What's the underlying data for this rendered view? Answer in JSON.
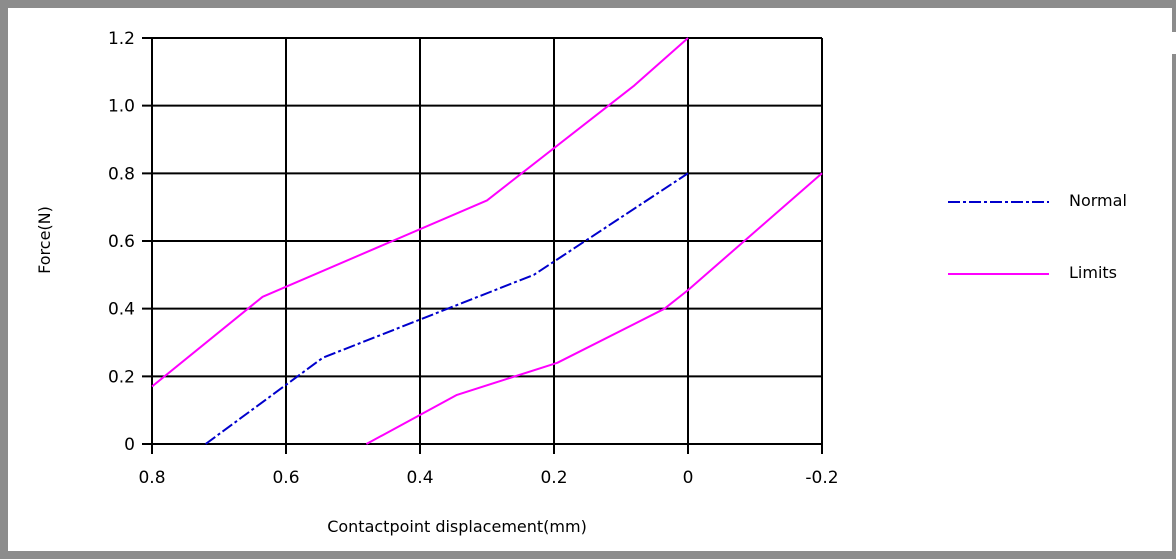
{
  "chart_data": {
    "type": "line",
    "title": "",
    "xlabel": "Contactpoint displacement(mm)",
    "ylabel": "Force(N)",
    "xlim": [
      0.8,
      -0.2
    ],
    "ylim": [
      0,
      1.2
    ],
    "x_reversed": true,
    "grid": true,
    "legend_position": "right",
    "x_ticks": [
      "0.8",
      "0.6",
      "0.4",
      "0.2",
      "0",
      "-0.2"
    ],
    "x_tick_values": [
      0.8,
      0.6,
      0.4,
      0.2,
      0,
      -0.2
    ],
    "y_ticks": [
      "0",
      "0.2",
      "0.4",
      "0.6",
      "0.8",
      "1.0",
      "1.2"
    ],
    "y_tick_values": [
      0,
      0.2,
      0.4,
      0.6,
      0.8,
      1.0,
      1.2
    ],
    "series": [
      {
        "name": "Normal",
        "color": "#0000cc",
        "style": "dash-dot",
        "points": [
          [
            0.72,
            0.0
          ],
          [
            0.545,
            0.255
          ],
          [
            0.23,
            0.5
          ],
          [
            0.0,
            0.8
          ]
        ]
      },
      {
        "name": "Limits",
        "color": "#ff00ff",
        "style": "solid",
        "points": [
          [
            0.8,
            0.17
          ],
          [
            0.635,
            0.435
          ],
          [
            0.3,
            0.72
          ],
          [
            0.08,
            1.06
          ],
          [
            0.0,
            1.2
          ]
        ]
      },
      {
        "name": "",
        "color": "#ff00ff",
        "style": "solid",
        "legend": false,
        "points": [
          [
            0.48,
            0.0
          ],
          [
            0.345,
            0.145
          ],
          [
            0.195,
            0.24
          ],
          [
            0.035,
            0.4
          ],
          [
            0.0,
            0.455
          ],
          [
            -0.2,
            0.8
          ]
        ]
      }
    ]
  }
}
